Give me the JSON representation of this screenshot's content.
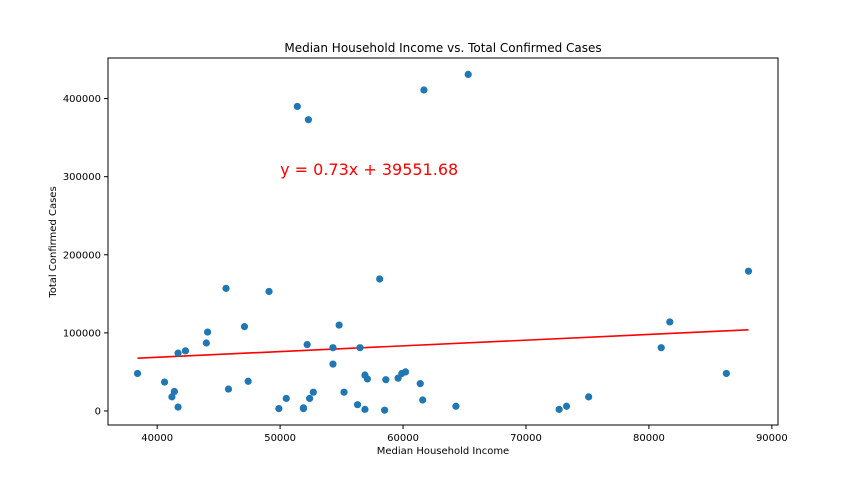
{
  "chart_data": {
    "type": "scatter",
    "title": "Median Household Income vs. Total Confirmed Cases",
    "xlabel": "Median Household Income",
    "ylabel": "Total Confirmed Cases",
    "xlim": [
      36000,
      90500
    ],
    "ylim": [
      -18000,
      452000
    ],
    "xticks": [
      40000,
      50000,
      60000,
      70000,
      80000,
      90000
    ],
    "yticks": [
      0,
      100000,
      200000,
      300000,
      400000
    ],
    "grid": false,
    "point_color": "#1f77b4",
    "line_color": "#ff0000",
    "annotation": {
      "text": "y = 0.73x + 39551.68",
      "x": 50000,
      "y": 302000,
      "color": "#ff0000"
    },
    "regression": {
      "slope": 0.73,
      "intercept": 39551.68,
      "x_range": [
        38400,
        88100
      ]
    },
    "series": [
      {
        "points": [
          [
            38400,
            48000
          ],
          [
            40600,
            37000
          ],
          [
            41200,
            18000
          ],
          [
            41400,
            25000
          ],
          [
            41700,
            5000
          ],
          [
            41700,
            74000
          ],
          [
            42300,
            77000
          ],
          [
            44000,
            87000
          ],
          [
            44100,
            101000
          ],
          [
            45600,
            157000
          ],
          [
            45800,
            28000
          ],
          [
            47100,
            108000
          ],
          [
            47400,
            38000
          ],
          [
            49100,
            153000
          ],
          [
            49900,
            3000
          ],
          [
            50500,
            16000
          ],
          [
            51400,
            390000
          ],
          [
            51900,
            3000
          ],
          [
            51900,
            4000
          ],
          [
            52200,
            85000
          ],
          [
            52300,
            373000
          ],
          [
            52400,
            16000
          ],
          [
            52700,
            24000
          ],
          [
            54300,
            81000
          ],
          [
            54300,
            60000
          ],
          [
            54800,
            110000
          ],
          [
            55200,
            24000
          ],
          [
            56300,
            8000
          ],
          [
            56500,
            81000
          ],
          [
            56900,
            46000
          ],
          [
            56900,
            2000
          ],
          [
            57100,
            41000
          ],
          [
            58100,
            169000
          ],
          [
            58500,
            1000
          ],
          [
            58600,
            40000
          ],
          [
            59600,
            42000
          ],
          [
            59900,
            48000
          ],
          [
            60200,
            50000
          ],
          [
            61400,
            35000
          ],
          [
            61600,
            14000
          ],
          [
            61700,
            411000
          ],
          [
            64300,
            6000
          ],
          [
            65300,
            431000
          ],
          [
            72700,
            2000
          ],
          [
            73300,
            6000
          ],
          [
            75100,
            18000
          ],
          [
            81000,
            81000
          ],
          [
            81700,
            114000
          ],
          [
            86300,
            48000
          ],
          [
            88100,
            179000
          ]
        ]
      }
    ]
  }
}
